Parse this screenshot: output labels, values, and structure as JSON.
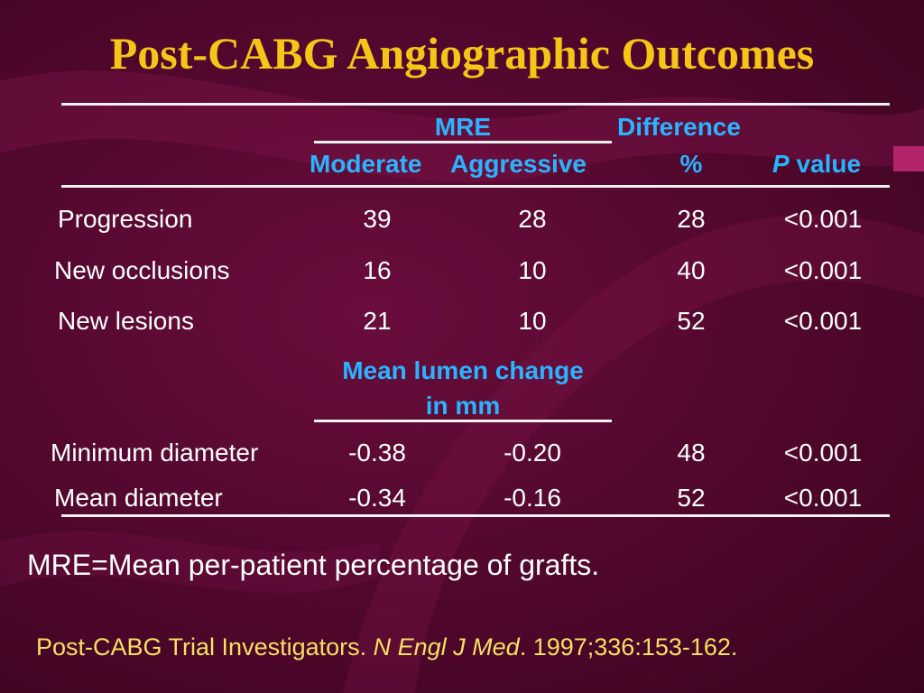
{
  "title": "Post-CABG Angiographic Outcomes",
  "header": {
    "mre": "MRE",
    "difference": "Difference",
    "moderate": "Moderate",
    "aggressive": "Aggressive",
    "percent": "%",
    "p_italic": "P",
    "value": "value"
  },
  "rows_top": [
    {
      "label": "Progression",
      "moderate": "39",
      "aggressive": "28",
      "difference": "28",
      "p": "<0.001"
    },
    {
      "label": "New occlusions",
      "moderate": "16",
      "aggressive": "10",
      "difference": "40",
      "p": "<0.001"
    },
    {
      "label": "New lesions",
      "moderate": "21",
      "aggressive": "10",
      "difference": "52",
      "p": "<0.001"
    }
  ],
  "mid_header": {
    "line1": "Mean lumen change",
    "line2": "in mm"
  },
  "rows_bottom": [
    {
      "label": "Minimum diameter",
      "moderate": "-0.38",
      "aggressive": "-0.20",
      "difference": "48",
      "p": "<0.001"
    },
    {
      "label": "Mean diameter",
      "moderate": "-0.34",
      "aggressive": "-0.16",
      "difference": "52",
      "p": "<0.001"
    }
  ],
  "footnote": "MRE=Mean per-patient percentage of grafts.",
  "citation": {
    "prefix": "Post-CABG Trial Investigators. ",
    "journal": "N Engl J Med",
    "suffix": ". 1997;336:153-162."
  },
  "colors": {
    "background": "#55082f",
    "title": "#f5c518",
    "header": "#2ab4ff",
    "citation": "#f5e060"
  }
}
